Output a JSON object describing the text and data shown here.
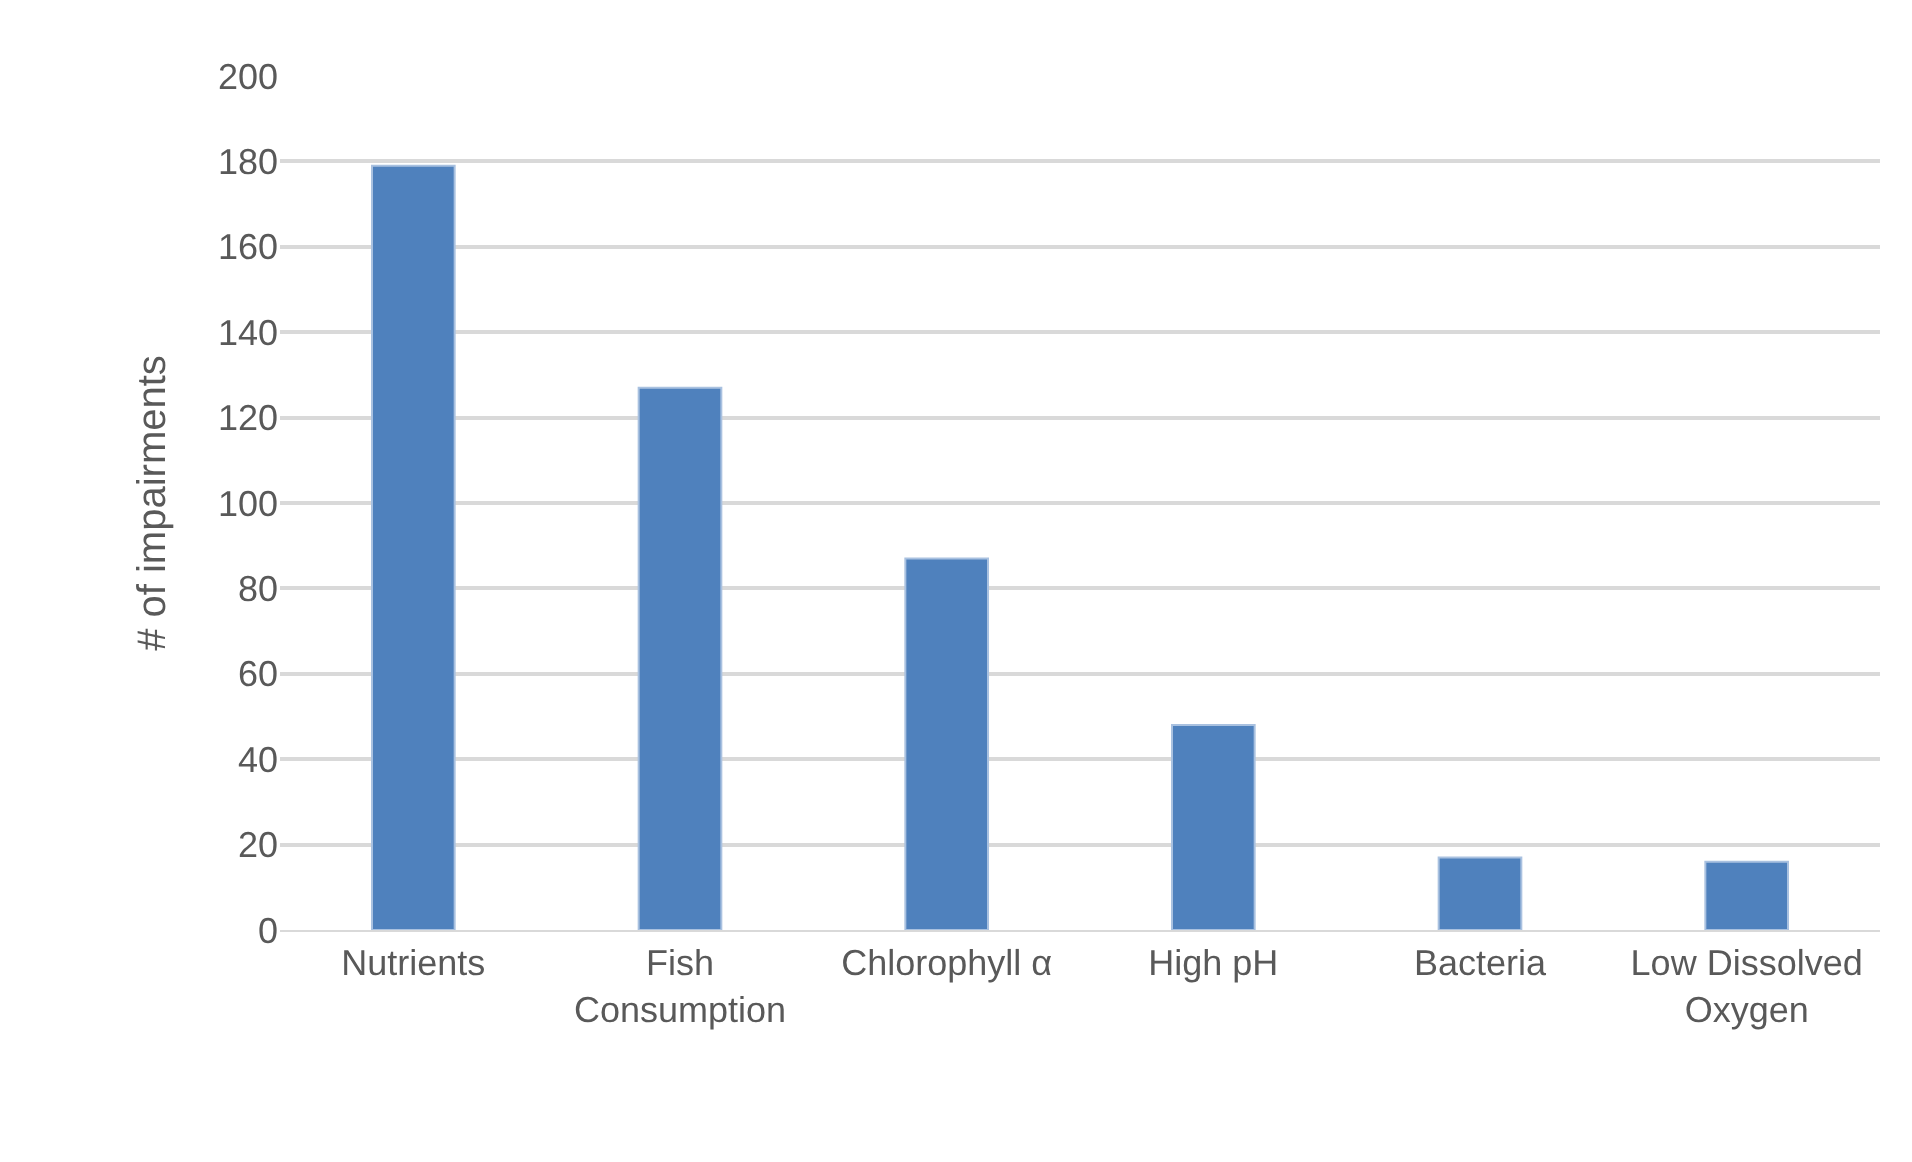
{
  "chart_data": {
    "type": "bar",
    "ylabel": "# of impairments",
    "categories": [
      "Nutrients",
      "Fish Consumption",
      "Chlorophyll α",
      "High pH",
      "Bacteria",
      "Low Dissolved Oxygen"
    ],
    "values": [
      179,
      127,
      87,
      48,
      17,
      16
    ],
    "color": "#4f81bd",
    "ylim": [
      0,
      200
    ],
    "yticks": [
      0,
      20,
      40,
      60,
      80,
      100,
      120,
      140,
      160,
      180,
      200
    ],
    "grid": "y"
  }
}
